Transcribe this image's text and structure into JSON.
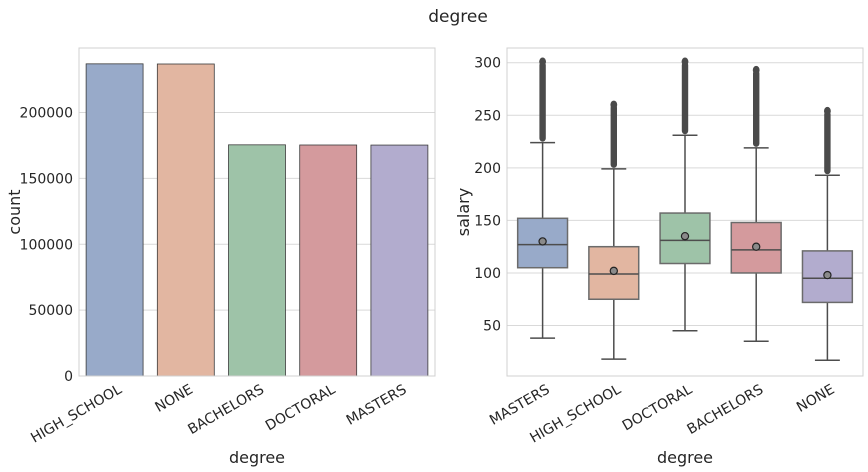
{
  "title": "degree",
  "chart_data": [
    {
      "type": "bar",
      "categories": [
        "HIGH_SCHOOL",
        "NONE",
        "BACHELORS",
        "DOCTORAL",
        "MASTERS"
      ],
      "values": [
        236976,
        236854,
        175495,
        175364,
        175311
      ],
      "colors": [
        "#98aac9",
        "#e2b6a1",
        "#9ec3a8",
        "#d49a9d",
        "#b2acce"
      ],
      "xlabel": "degree",
      "ylabel": "count",
      "ylim": [
        0,
        249000
      ],
      "yticks": [
        0,
        50000,
        100000,
        150000,
        200000
      ],
      "ytick_labels": [
        "0",
        "50000",
        "100000",
        "150000",
        "200000"
      ],
      "grid": true
    },
    {
      "type": "box",
      "categories": [
        "MASTERS",
        "HIGH_SCHOOL",
        "DOCTORAL",
        "BACHELORS",
        "NONE"
      ],
      "colors": [
        "#98aac9",
        "#e2b6a1",
        "#9ec3a8",
        "#d49a9d",
        "#b2acce"
      ],
      "boxes": [
        {
          "whislo": 38,
          "q1": 105,
          "median": 127,
          "q3": 152,
          "whishi": 224,
          "mean": 130,
          "outliers_range": [
            225,
            301
          ]
        },
        {
          "whislo": 18,
          "q1": 75,
          "median": 99,
          "q3": 125,
          "whishi": 199,
          "mean": 102,
          "outliers_range": [
            200,
            260
          ]
        },
        {
          "whislo": 45,
          "q1": 109,
          "median": 131,
          "q3": 157,
          "whishi": 231,
          "mean": 135,
          "outliers_range": [
            232,
            301
          ]
        },
        {
          "whislo": 35,
          "q1": 100,
          "median": 122,
          "q3": 148,
          "whishi": 219,
          "mean": 125,
          "outliers_range": [
            220,
            293
          ]
        },
        {
          "whislo": 17,
          "q1": 72,
          "median": 95,
          "q3": 121,
          "whishi": 193,
          "mean": 98,
          "outliers_range": [
            194,
            254
          ]
        }
      ],
      "xlabel": "degree",
      "ylabel": "salary",
      "ylim": [
        2,
        314
      ],
      "yticks": [
        50,
        100,
        150,
        200,
        250,
        300
      ],
      "ytick_labels": [
        "50",
        "100",
        "150",
        "200",
        "250",
        "300"
      ],
      "grid": true
    }
  ]
}
